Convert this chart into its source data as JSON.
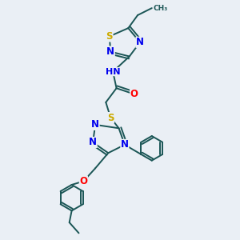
{
  "bg_color": "#eaeff5",
  "atom_colors": {
    "N": "#0000ee",
    "S": "#ccaa00",
    "O": "#ff0000",
    "C": "#1a5555",
    "H": "#1a5555"
  },
  "font_size_atom": 8.5,
  "font_size_small": 7.5,
  "line_color": "#1a5555",
  "line_width": 1.4
}
